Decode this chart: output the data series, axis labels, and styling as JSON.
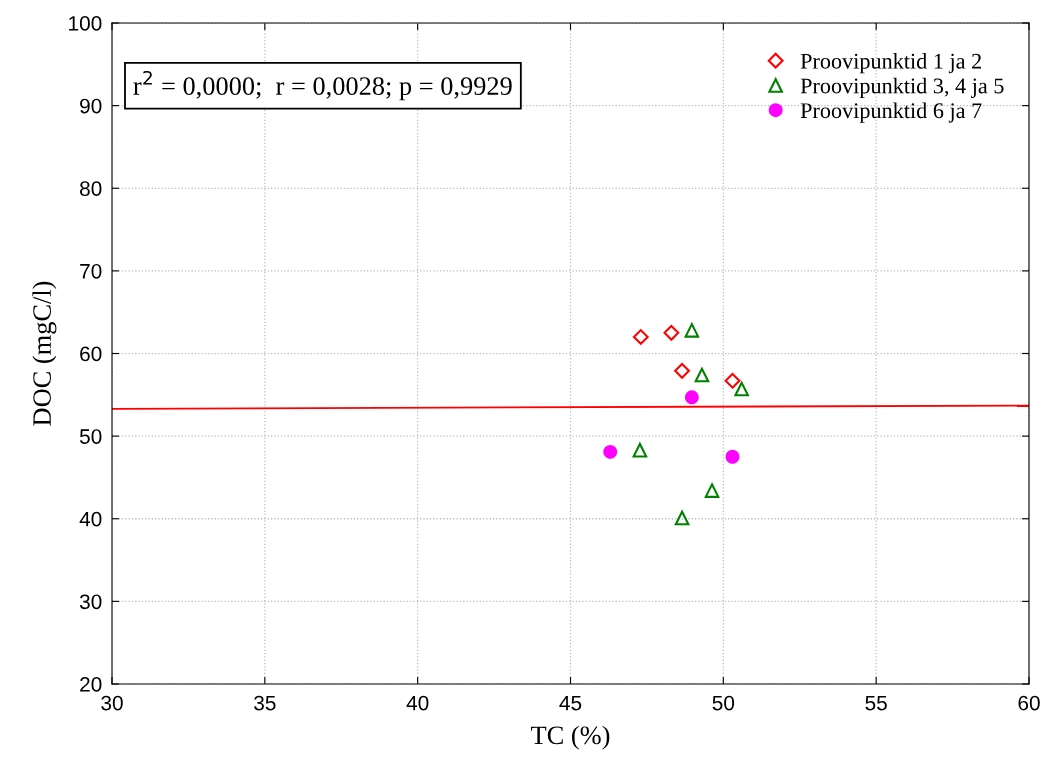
{
  "chart_data": {
    "type": "scatter",
    "xlabel": "TC (%)",
    "ylabel": "DOC (mgC/l)",
    "xlim": [
      30,
      60
    ],
    "xticks": [
      30,
      35,
      40,
      45,
      50,
      55,
      60
    ],
    "ylim": [
      20,
      100
    ],
    "yticks": [
      20,
      30,
      40,
      50,
      60,
      70,
      80,
      90,
      100
    ],
    "grid": true,
    "legend": "top right",
    "annotations": [
      "r$^{2}$ = 0,0000;  r = 0,0028; p = 0,9929"
    ],
    "series": [
      {
        "name": "Proovipunktid 1 ja 2",
        "color": "#ff0000",
        "marker": "diamond",
        "x": [
          47.3,
          48.3,
          48.65,
          50.3
        ],
        "values": [
          62.0,
          62.5,
          57.9,
          56.7
        ]
      },
      {
        "name": "Proovipunktid 3, 4 ja 5",
        "color": "#008000",
        "marker": "triangle",
        "x": [
          48.97,
          49.3,
          50.6,
          47.27,
          49.63,
          48.65
        ],
        "values": [
          62.8,
          57.4,
          55.7,
          48.3,
          43.4,
          40.1
        ]
      },
      {
        "name": "Proovipunktid 6 ja 7",
        "color": "#ff00ff",
        "marker": "circle",
        "x": [
          48.97,
          46.3,
          50.3
        ],
        "values": [
          54.7,
          48.1,
          47.5
        ]
      },
      {
        "type": "line",
        "color": "#ff0000",
        "marker": "none",
        "x": [
          30,
          60
        ],
        "values": [
          53.3,
          53.7
        ]
      }
    ]
  }
}
